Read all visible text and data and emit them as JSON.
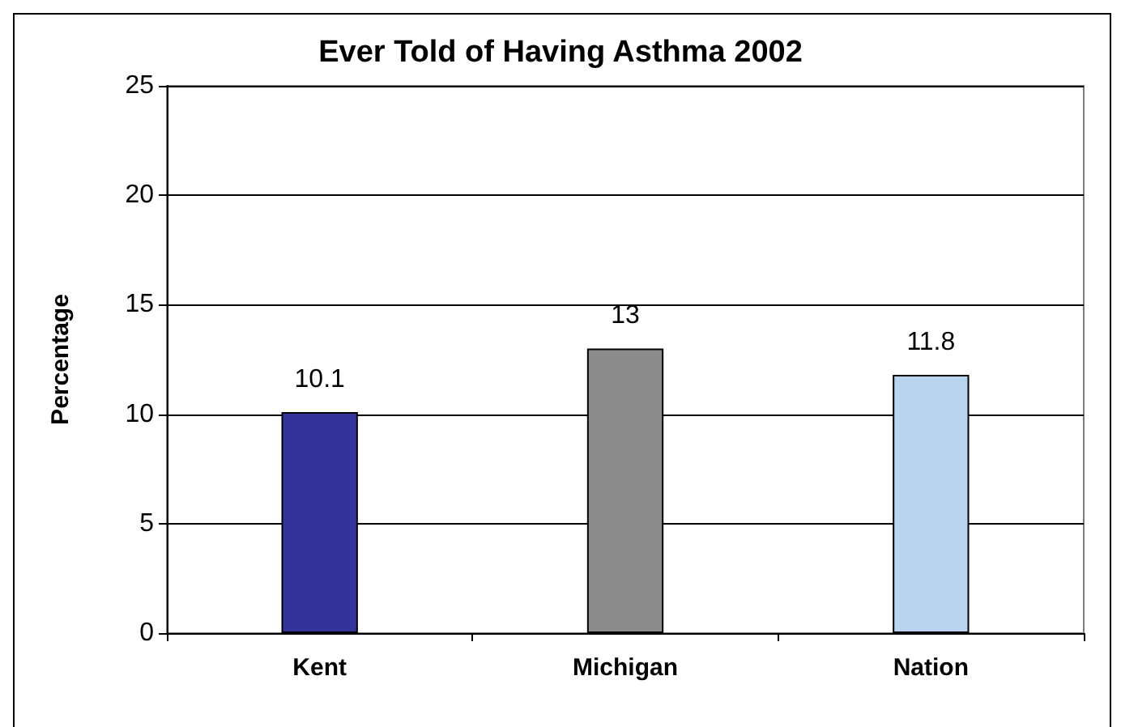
{
  "chart_data": {
    "type": "bar",
    "title": "Ever Told of Having Asthma 2002",
    "ylabel": "Percentage",
    "categories": [
      "Kent",
      "Michigan",
      "Nation"
    ],
    "values": [
      10.1,
      13,
      11.8
    ],
    "colors": [
      "#333399",
      "#8c8c8c",
      "#b8d4ee"
    ],
    "ylim": [
      0,
      25
    ],
    "yticks": [
      0,
      5,
      10,
      15,
      20,
      25
    ],
    "grid": "y",
    "data_labels": true
  }
}
